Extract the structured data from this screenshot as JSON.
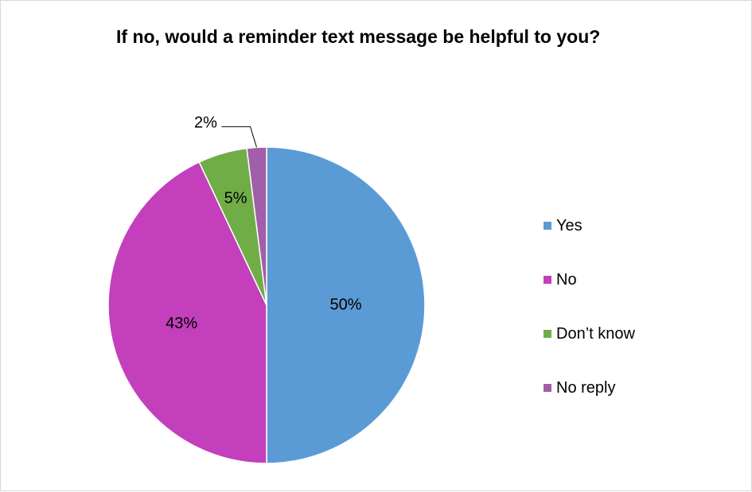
{
  "chart_data": {
    "type": "pie",
    "title": "If no, would a reminder text message be helpful to you?",
    "slices": [
      {
        "label": "Yes",
        "value": 50,
        "display": "50%",
        "color": "#5B9BD5"
      },
      {
        "label": "No",
        "value": 43,
        "display": "43%",
        "color": "#C33FBB"
      },
      {
        "label": "Don’t know",
        "value": 5,
        "display": "5%",
        "color": "#70AD47"
      },
      {
        "label": "No reply",
        "value": 2,
        "display": "2%",
        "color": "#A25EA8"
      }
    ],
    "legend_position": "right"
  }
}
